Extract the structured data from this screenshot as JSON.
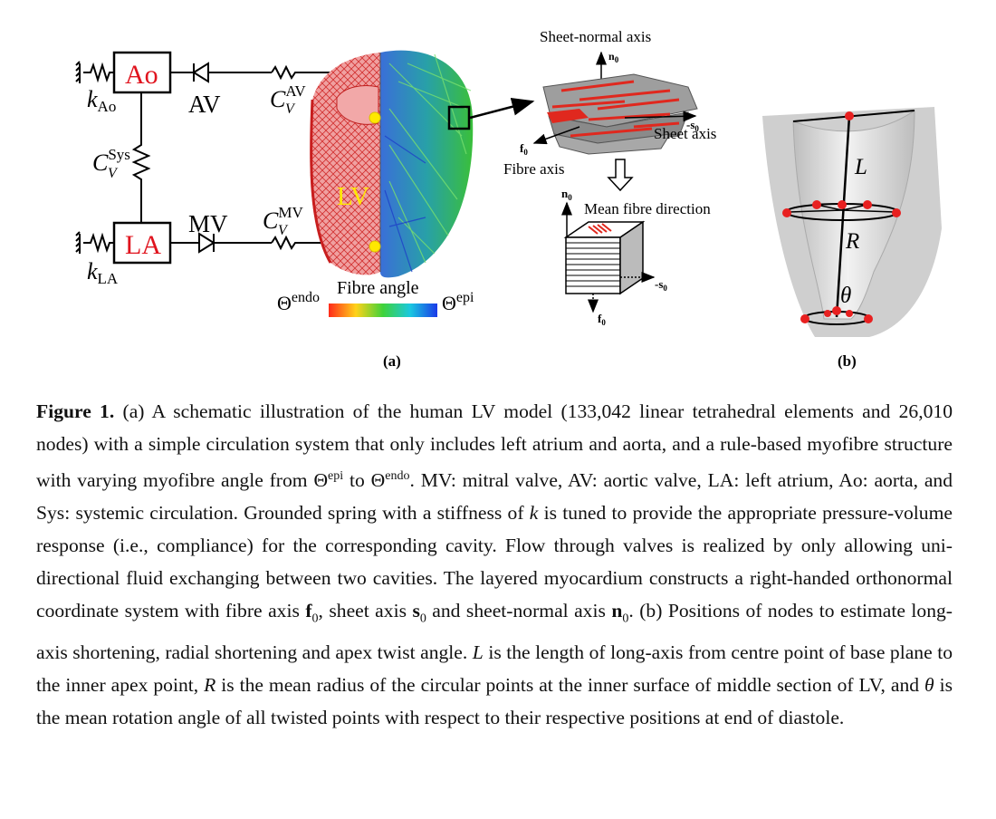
{
  "panel_a": {
    "label": "(a)",
    "circulation": {
      "ao": "Ao",
      "la": "LA",
      "av": "AV",
      "mv": "MV",
      "k_ao": "k",
      "k_ao_sub": "Ao",
      "k_la": "k",
      "k_la_sub": "LA",
      "c_av": "C",
      "c_av_sub": "V",
      "c_av_sup": "AV",
      "c_mv": "C",
      "c_mv_sub": "V",
      "c_mv_sup": "MV",
      "c_sys": "C",
      "c_sys_sub": "V",
      "c_sys_sup": "Sys"
    },
    "lv_label": "LV",
    "fibre_angle_label": "Fibre angle",
    "theta_endo": "Θ",
    "theta_endo_sup": "endo",
    "theta_epi": "Θ",
    "theta_epi_sup": "epi",
    "sheet_normal_axis": "Sheet-normal axis",
    "sheet_axis": "Sheet axis",
    "fibre_axis": "Fibre axis",
    "mean_fibre_direction": "Mean fibre direction",
    "n0": "n",
    "s0": "-s",
    "f0": "f",
    "zero": "0"
  },
  "panel_b": {
    "label": "(b)",
    "L": "L",
    "R": "R",
    "theta": "θ"
  },
  "caption": {
    "fig_label": "Figure 1.",
    "p1": " (a) A schematic illustration of the human LV model (133,042 linear tetrahedral elements and 26,010 nodes) with a simple circulation system that only includes left atrium and aorta, and a rule-based myofibre structure with varying myofibre angle from ",
    "theta1": "Θ",
    "theta1_sup": "epi",
    "p2": " to ",
    "theta2": "Θ",
    "theta2_sup": "endo",
    "p3": ". MV: mitral valve, AV: aortic valve, LA: left atrium, Ao: aorta, and Sys: systemic circulation. Grounded spring with a stiffness of ",
    "k": "k",
    "p4": " is tuned to provide the appropriate pressure-volume response (i.e., compliance) for the corresponding cavity. Flow through valves is realized by only allowing uni-directional fluid exchanging between two cavities. The layered myocardium constructs a right-handed orthonormal coordinate system with fibre axis ",
    "f0": "f",
    "f0_sub": "0",
    "p5": ", sheet axis ",
    "s0": "s",
    "s0_sub": "0",
    "p6": " and sheet-normal axis ",
    "n0": "n",
    "n0_sub": "0",
    "p7": ". (b) Positions of nodes to estimate long-axis shortening, radial shortening and apex twist angle. ",
    "L": "L",
    "p8": " is the length of long-axis from centre point of base plane to the inner apex point, ",
    "R": "R",
    "p9": " is the mean radius of the circular points at the inner surface of middle section of LV, and ",
    "theta": "θ",
    "p10": " is the mean rotation angle of all twisted points with respect to their respective positions at end of diastole."
  }
}
